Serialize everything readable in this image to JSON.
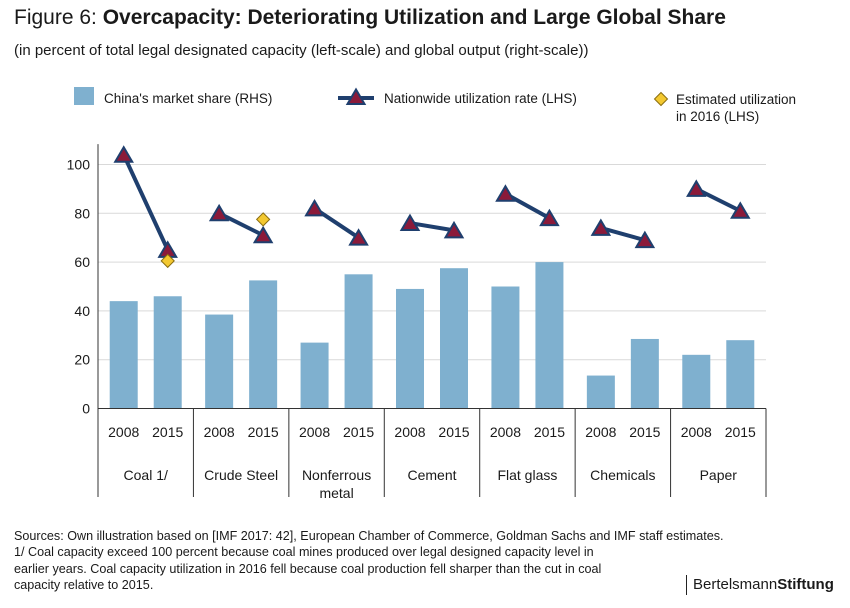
{
  "header": {
    "figure_label": "Figure 6:",
    "title": "Overcapacity: Deteriorating Utilization and Large Global Share",
    "subtitle": "(in percent of total legal designated capacity (left-scale) and global output (right-scale))"
  },
  "chart_data": {
    "type": "bar",
    "groups": [
      "Coal 1/",
      "Crude Steel",
      "Nonferrous metal",
      "Cement",
      "Flat glass",
      "Chemicals",
      "Paper"
    ],
    "group_label_lines": [
      [
        "Coal 1/"
      ],
      [
        "Crude Steel"
      ],
      [
        "Nonferrous",
        "metal"
      ],
      [
        "Cement"
      ],
      [
        "Flat glass"
      ],
      [
        "Chemicals"
      ],
      [
        "Paper"
      ]
    ],
    "categories": [
      "2008",
      "2015"
    ],
    "ylim": [
      0,
      110
    ],
    "yticks": [
      0,
      20,
      40,
      60,
      80,
      100
    ],
    "grid": true,
    "legend_position": "top",
    "series": [
      {
        "name": "China's market share (RHS)",
        "kind": "bar",
        "color": "#7fb0cf",
        "values": [
          [
            44,
            46
          ],
          [
            38.5,
            52.5
          ],
          [
            27,
            55
          ],
          [
            49,
            57.5
          ],
          [
            50,
            60
          ],
          [
            13.5,
            28.5
          ],
          [
            22,
            28
          ]
        ]
      },
      {
        "name": "Nationwide utilization rate (LHS)",
        "kind": "line",
        "color": "#1f3f6e",
        "marker_color": "#8b1a3a",
        "values": [
          [
            104,
            65
          ],
          [
            80,
            71
          ],
          [
            82,
            70
          ],
          [
            76,
            73
          ],
          [
            88,
            78
          ],
          [
            74,
            69
          ],
          [
            90,
            81
          ]
        ]
      },
      {
        "name": "Estimated utilization in 2016 (LHS)",
        "legend_lines": [
          "Estimated utilization",
          "in 2016 (LHS)"
        ],
        "kind": "point",
        "color": "#f3c830",
        "points": [
          {
            "group": 0,
            "value": 60.5
          },
          {
            "group": 1,
            "value": 77.5
          }
        ]
      }
    ]
  },
  "footer": {
    "source_lines": [
      "Sources: Own illustration based on [IMF 2017: 42], European Chamber of Commerce, Goldman Sachs and IMF staff estimates.",
      "1/ Coal capacity exceed 100 percent because coal mines produced over legal designed capacity level in",
      "earlier years. Coal capacity utilization in 2016 fell because coal production fell sharper than the cut in coal",
      "capacity relative to 2015."
    ],
    "brand_regular": "Bertelsmann",
    "brand_bold": "Stiftung"
  }
}
